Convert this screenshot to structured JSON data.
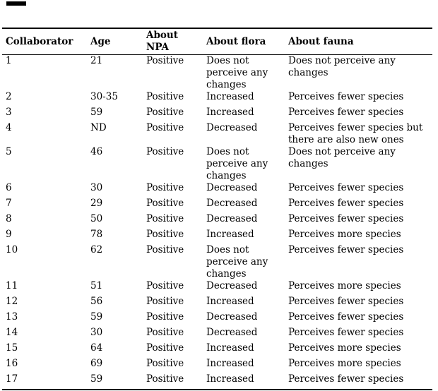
{
  "artifact": {
    "note": "small black scan mark at top-left corner"
  },
  "table": {
    "columns": [
      {
        "key": "collaborator",
        "label": "Collaborator"
      },
      {
        "key": "age",
        "label": "Age"
      },
      {
        "key": "npa",
        "label": "About\nNPA"
      },
      {
        "key": "flora",
        "label": "About flora"
      },
      {
        "key": "fauna",
        "label": "About fauna"
      }
    ],
    "rows": [
      {
        "collaborator": "1",
        "age": "21",
        "npa": "Positive",
        "flora": "Does not\nperceive any\nchanges",
        "fauna": "Does not perceive any\nchanges"
      },
      {
        "collaborator": "2",
        "age": "30-35",
        "npa": "Positive",
        "flora": "Increased",
        "fauna": "Perceives fewer species"
      },
      {
        "collaborator": "3",
        "age": "59",
        "npa": "Positive",
        "flora": "Increased",
        "fauna": "Perceives fewer species"
      },
      {
        "collaborator": "4",
        "age": "ND",
        "npa": "Positive",
        "flora": "Decreased",
        "fauna": "Perceives fewer species but\nthere are also new ones"
      },
      {
        "collaborator": "5",
        "age": "46",
        "npa": "Positive",
        "flora": "Does not\nperceive any\nchanges",
        "fauna": "Does not perceive any\nchanges"
      },
      {
        "collaborator": "6",
        "age": "30",
        "npa": "Positive",
        "flora": "Decreased",
        "fauna": "Perceives fewer species"
      },
      {
        "collaborator": "7",
        "age": "29",
        "npa": "Positive",
        "flora": "Decreased",
        "fauna": "Perceives fewer species"
      },
      {
        "collaborator": "8",
        "age": "50",
        "npa": "Positive",
        "flora": "Decreased",
        "fauna": "Perceives fewer species"
      },
      {
        "collaborator": "9",
        "age": "78",
        "npa": "Positive",
        "flora": "Increased",
        "fauna": "Perceives more species"
      },
      {
        "collaborator": "10",
        "age": "62",
        "npa": "Positive",
        "flora": "Does not\nperceive any\nchanges",
        "fauna": "Perceives fewer species"
      },
      {
        "collaborator": "11",
        "age": "51",
        "npa": "Positive",
        "flora": "Decreased",
        "fauna": "Perceives more species"
      },
      {
        "collaborator": "12",
        "age": "56",
        "npa": "Positive",
        "flora": "Increased",
        "fauna": "Perceives fewer species"
      },
      {
        "collaborator": "13",
        "age": "59",
        "npa": "Positive",
        "flora": "Decreased",
        "fauna": "Perceives fewer species"
      },
      {
        "collaborator": "14",
        "age": "30",
        "npa": "Positive",
        "flora": "Decreased",
        "fauna": "Perceives fewer species"
      },
      {
        "collaborator": "15",
        "age": "64",
        "npa": "Positive",
        "flora": "Increased",
        "fauna": "Perceives more species"
      },
      {
        "collaborator": "16",
        "age": "69",
        "npa": "Positive",
        "flora": "Increased",
        "fauna": "Perceives more species"
      },
      {
        "collaborator": "17",
        "age": "59",
        "npa": "Positive",
        "flora": "Increased",
        "fauna": "Perceives fewer species"
      }
    ]
  }
}
